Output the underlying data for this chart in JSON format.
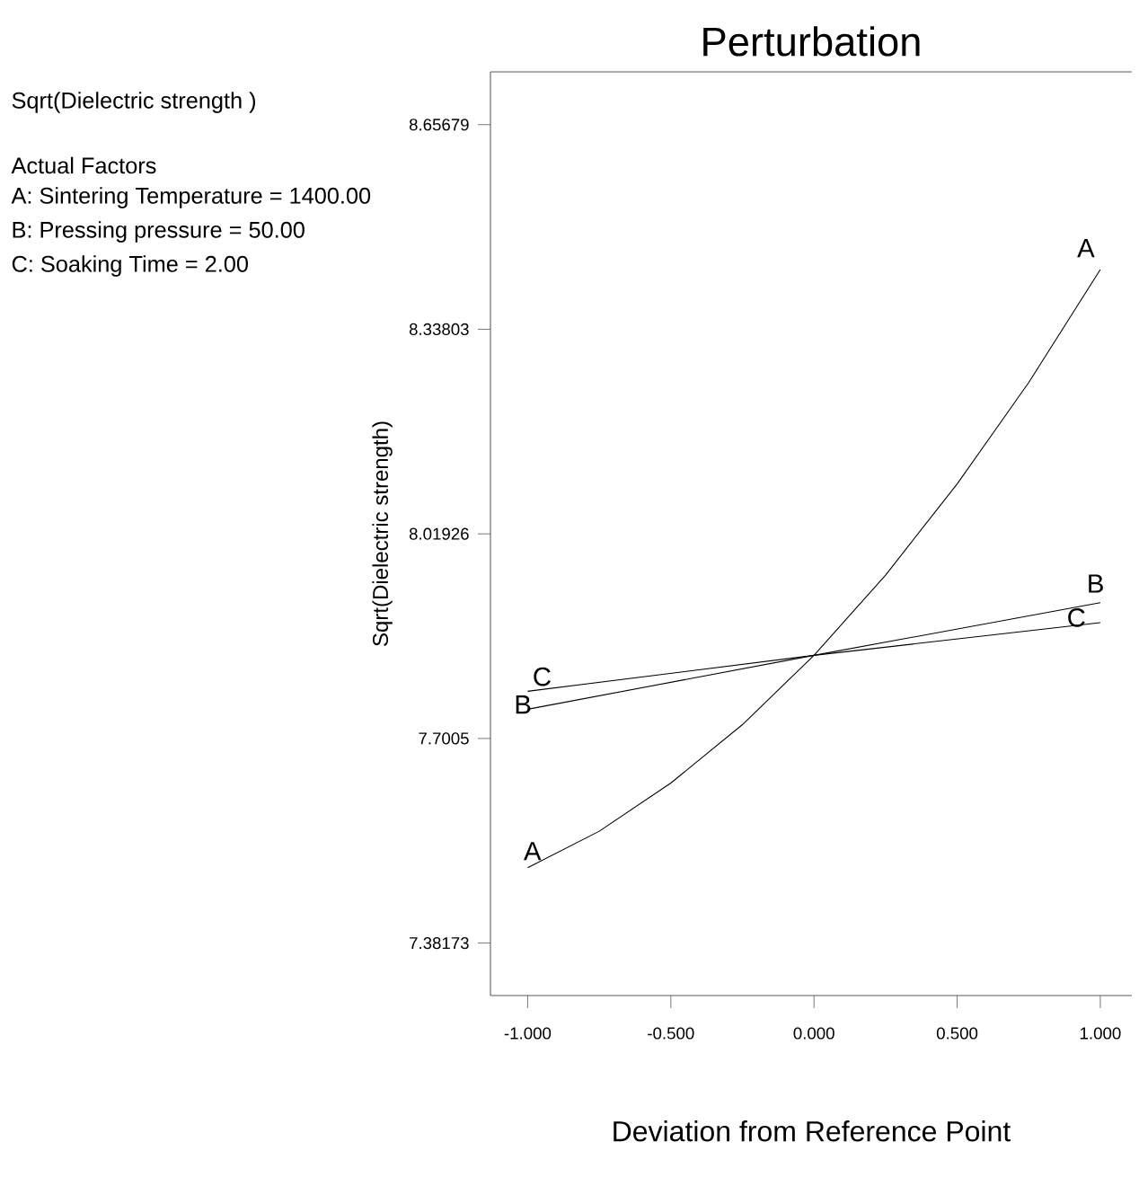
{
  "chart_data": {
    "type": "line",
    "title": "Perturbation",
    "xlabel": "Deviation from Reference Point",
    "ylabel": "Sqrt(Dielectric strength)",
    "annotations": [
      "Sqrt(Dielectric strength )",
      "Actual Factors",
      "A: Sintering Temperature  = 1400.00",
      "B: Pressing pressure  = 50.00",
      "C: Soaking Time  = 2.00"
    ],
    "xlim": [
      -1.13,
      1.11
    ],
    "ylim": [
      7.3,
      8.739
    ],
    "xticks": [
      {
        "value": -1,
        "label": "-1.000"
      },
      {
        "value": -0.5,
        "label": "-0.500"
      },
      {
        "value": 0,
        "label": "0.000"
      },
      {
        "value": 0.5,
        "label": "0.500"
      },
      {
        "value": 1,
        "label": "1.000"
      }
    ],
    "yticks": [
      7.38173,
      7.7005,
      8.01926,
      8.33803,
      8.65679
    ],
    "marker": "none",
    "grid": false,
    "series": [
      {
        "name": "A",
        "color": "#000000",
        "x": [
          -1,
          -0.75,
          -0.5,
          -0.25,
          0,
          0.25,
          0.5,
          0.75,
          1
        ],
        "values": [
          7.499,
          7.556,
          7.631,
          7.722,
          7.83,
          7.955,
          8.097,
          8.255,
          8.431
        ]
      },
      {
        "name": "B",
        "color": "#000000",
        "x": [
          -1,
          0,
          1
        ],
        "values": [
          7.746,
          7.83,
          7.912
        ]
      },
      {
        "name": "C",
        "color": "#000000",
        "x": [
          -1,
          0,
          1
        ],
        "values": [
          7.774,
          7.83,
          7.881
        ]
      }
    ]
  }
}
